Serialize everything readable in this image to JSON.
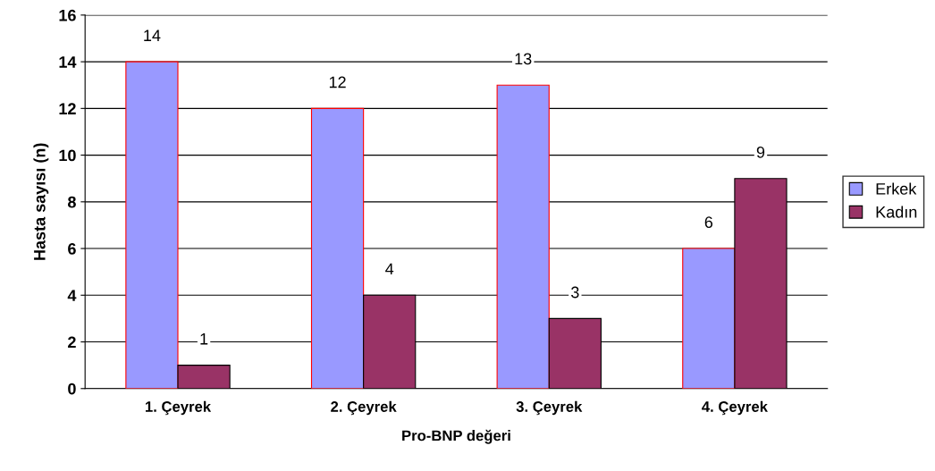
{
  "chart_data": {
    "type": "bar",
    "xlabel": "Pro-BNP değeri",
    "ylabel": "Hasta sayısı (n)",
    "categories": [
      "1. Çeyrek",
      "2. Çeyrek",
      "3. Çeyrek",
      "4. Çeyrek"
    ],
    "series": [
      {
        "name": "Erkek",
        "color": "#9999ff",
        "values": [
          14,
          12,
          13,
          6
        ]
      },
      {
        "name": "Kadın",
        "color": "#993366",
        "values": [
          1,
          4,
          3,
          9
        ]
      }
    ],
    "ylim": [
      0,
      16
    ],
    "yticks": [
      0,
      2,
      4,
      6,
      8,
      10,
      12,
      14,
      16
    ],
    "grid": "y",
    "legend": "right",
    "data_labels": true
  }
}
